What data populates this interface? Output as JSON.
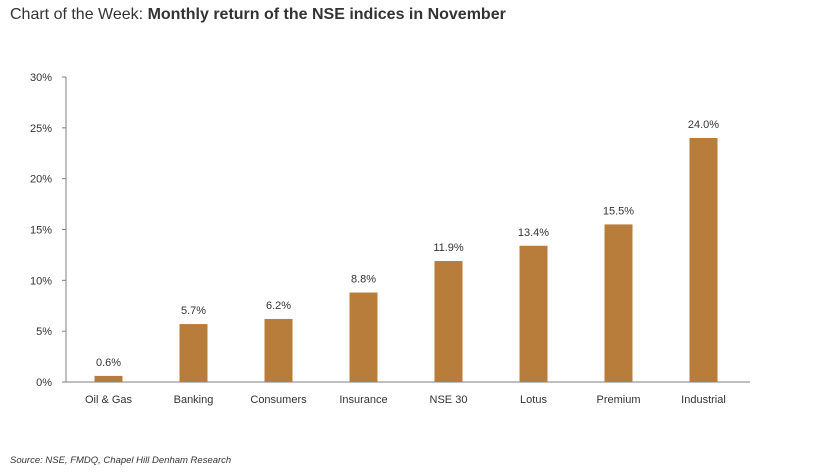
{
  "title_lead": "Chart of the Week:",
  "title_rest": "Monthly return of the NSE indices in November",
  "source": "Source: NSE, FMDQ, Chapel Hill Denham Research",
  "colors": {
    "bar": "#B87D3A",
    "axis": "#7F7F7F",
    "text": "#333333"
  },
  "chart_data": {
    "type": "bar",
    "categories": [
      "Oil & Gas",
      "Banking",
      "Consumers",
      "Insurance",
      "NSE 30",
      "Lotus",
      "Premium",
      "Industrial"
    ],
    "values": [
      0.6,
      5.7,
      6.2,
      8.8,
      11.9,
      13.4,
      15.5,
      24.0
    ],
    "data_labels": [
      "0.6%",
      "5.7%",
      "6.2%",
      "8.8%",
      "11.9%",
      "13.4%",
      "15.5%",
      "24.0%"
    ],
    "ylim": [
      0,
      30
    ],
    "yticks": [
      0,
      5,
      10,
      15,
      20,
      25,
      30
    ],
    "ytick_labels": [
      "0%",
      "5%",
      "10%",
      "15%",
      "20%",
      "25%",
      "30%"
    ],
    "grid": false,
    "legend": "none"
  }
}
